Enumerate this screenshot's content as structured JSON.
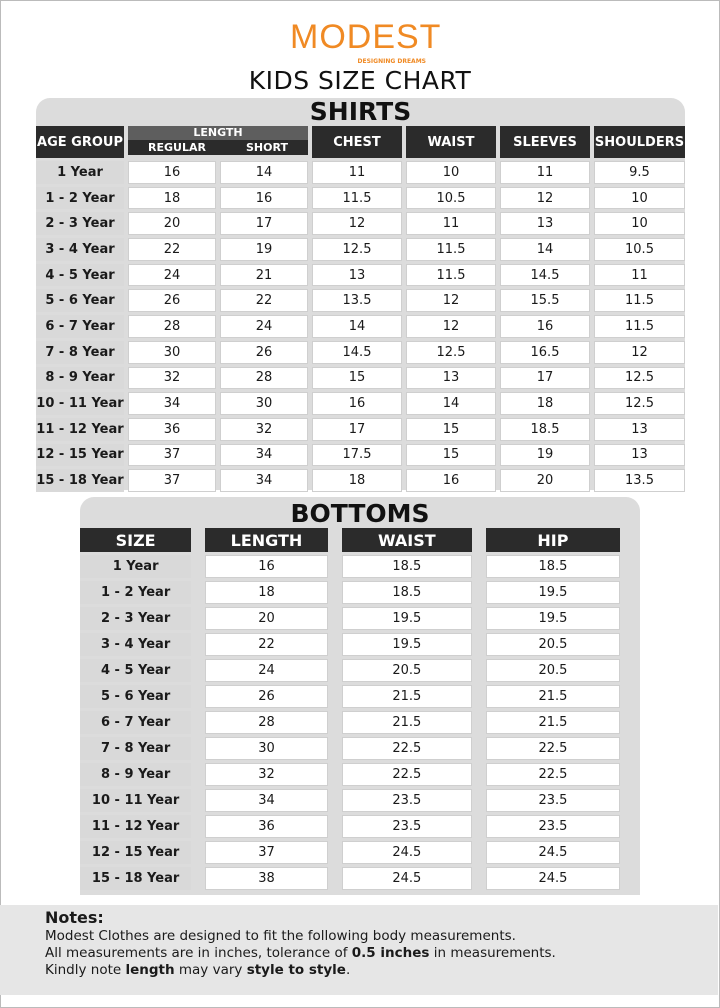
{
  "logo": {
    "brand": "MODEST",
    "tagline": "DESIGNING DREAMS",
    "color": "#f08a24"
  },
  "title": "KIDS SIZE CHART",
  "shirts": {
    "title": "SHIRTS",
    "headers": {
      "age": "AGE GROUP",
      "length": "LENGTH",
      "regular": "REGULAR",
      "short": "SHORT",
      "chest": "CHEST",
      "waist": "WAIST",
      "sleeves": "SLEEVES",
      "shoulders": "SHOULDERS"
    },
    "rows": [
      [
        "1 Year",
        "16",
        "14",
        "11",
        "10",
        "11",
        "9.5"
      ],
      [
        "1 - 2 Year",
        "18",
        "16",
        "11.5",
        "10.5",
        "12",
        "10"
      ],
      [
        "2 - 3 Year",
        "20",
        "17",
        "12",
        "11",
        "13",
        "10"
      ],
      [
        "3 - 4 Year",
        "22",
        "19",
        "12.5",
        "11.5",
        "14",
        "10.5"
      ],
      [
        "4 - 5 Year",
        "24",
        "21",
        "13",
        "11.5",
        "14.5",
        "11"
      ],
      [
        "5 - 6 Year",
        "26",
        "22",
        "13.5",
        "12",
        "15.5",
        "11.5"
      ],
      [
        "6 - 7 Year",
        "28",
        "24",
        "14",
        "12",
        "16",
        "11.5"
      ],
      [
        "7 - 8 Year",
        "30",
        "26",
        "14.5",
        "12.5",
        "16.5",
        "12"
      ],
      [
        "8 - 9 Year",
        "32",
        "28",
        "15",
        "13",
        "17",
        "12.5"
      ],
      [
        "10 - 11 Year",
        "34",
        "30",
        "16",
        "14",
        "18",
        "12.5"
      ],
      [
        "11 - 12 Year",
        "36",
        "32",
        "17",
        "15",
        "18.5",
        "13"
      ],
      [
        "12 - 15 Year",
        "37",
        "34",
        "17.5",
        "15",
        "19",
        "13"
      ],
      [
        "15 - 18 Year",
        "37",
        "34",
        "18",
        "16",
        "20",
        "13.5"
      ]
    ]
  },
  "bottoms": {
    "title": "BOTTOMS",
    "headers": [
      "SIZE",
      "LENGTH",
      "WAIST",
      "HIP"
    ],
    "rows": [
      [
        "1 Year",
        "16",
        "18.5",
        "18.5"
      ],
      [
        "1 - 2 Year",
        "18",
        "18.5",
        "19.5"
      ],
      [
        "2 - 3 Year",
        "20",
        "19.5",
        "19.5"
      ],
      [
        "3 - 4 Year",
        "22",
        "19.5",
        "20.5"
      ],
      [
        "4 - 5 Year",
        "24",
        "20.5",
        "20.5"
      ],
      [
        "5 - 6 Year",
        "26",
        "21.5",
        "21.5"
      ],
      [
        "6 - 7 Year",
        "28",
        "21.5",
        "21.5"
      ],
      [
        "7 - 8 Year",
        "30",
        "22.5",
        "22.5"
      ],
      [
        "8 - 9 Year",
        "32",
        "22.5",
        "22.5"
      ],
      [
        "10 - 11 Year",
        "34",
        "23.5",
        "23.5"
      ],
      [
        "11 - 12 Year",
        "36",
        "23.5",
        "23.5"
      ],
      [
        "12 - 15 Year",
        "37",
        "24.5",
        "24.5"
      ],
      [
        "15 - 18 Year",
        "38",
        "24.5",
        "24.5"
      ]
    ]
  },
  "notes": {
    "heading": "Notes:",
    "line1": "Modest Clothes are designed to fit the following body measurements.",
    "line2_a": "All measurements are in inches, tolerance of ",
    "line2_b": "0.5 inches",
    "line2_c": " in measurements.",
    "line3_a": "Kindly note ",
    "line3_b": "length",
    "line3_c": " may vary ",
    "line3_d": "style to style",
    "line3_e": "."
  }
}
